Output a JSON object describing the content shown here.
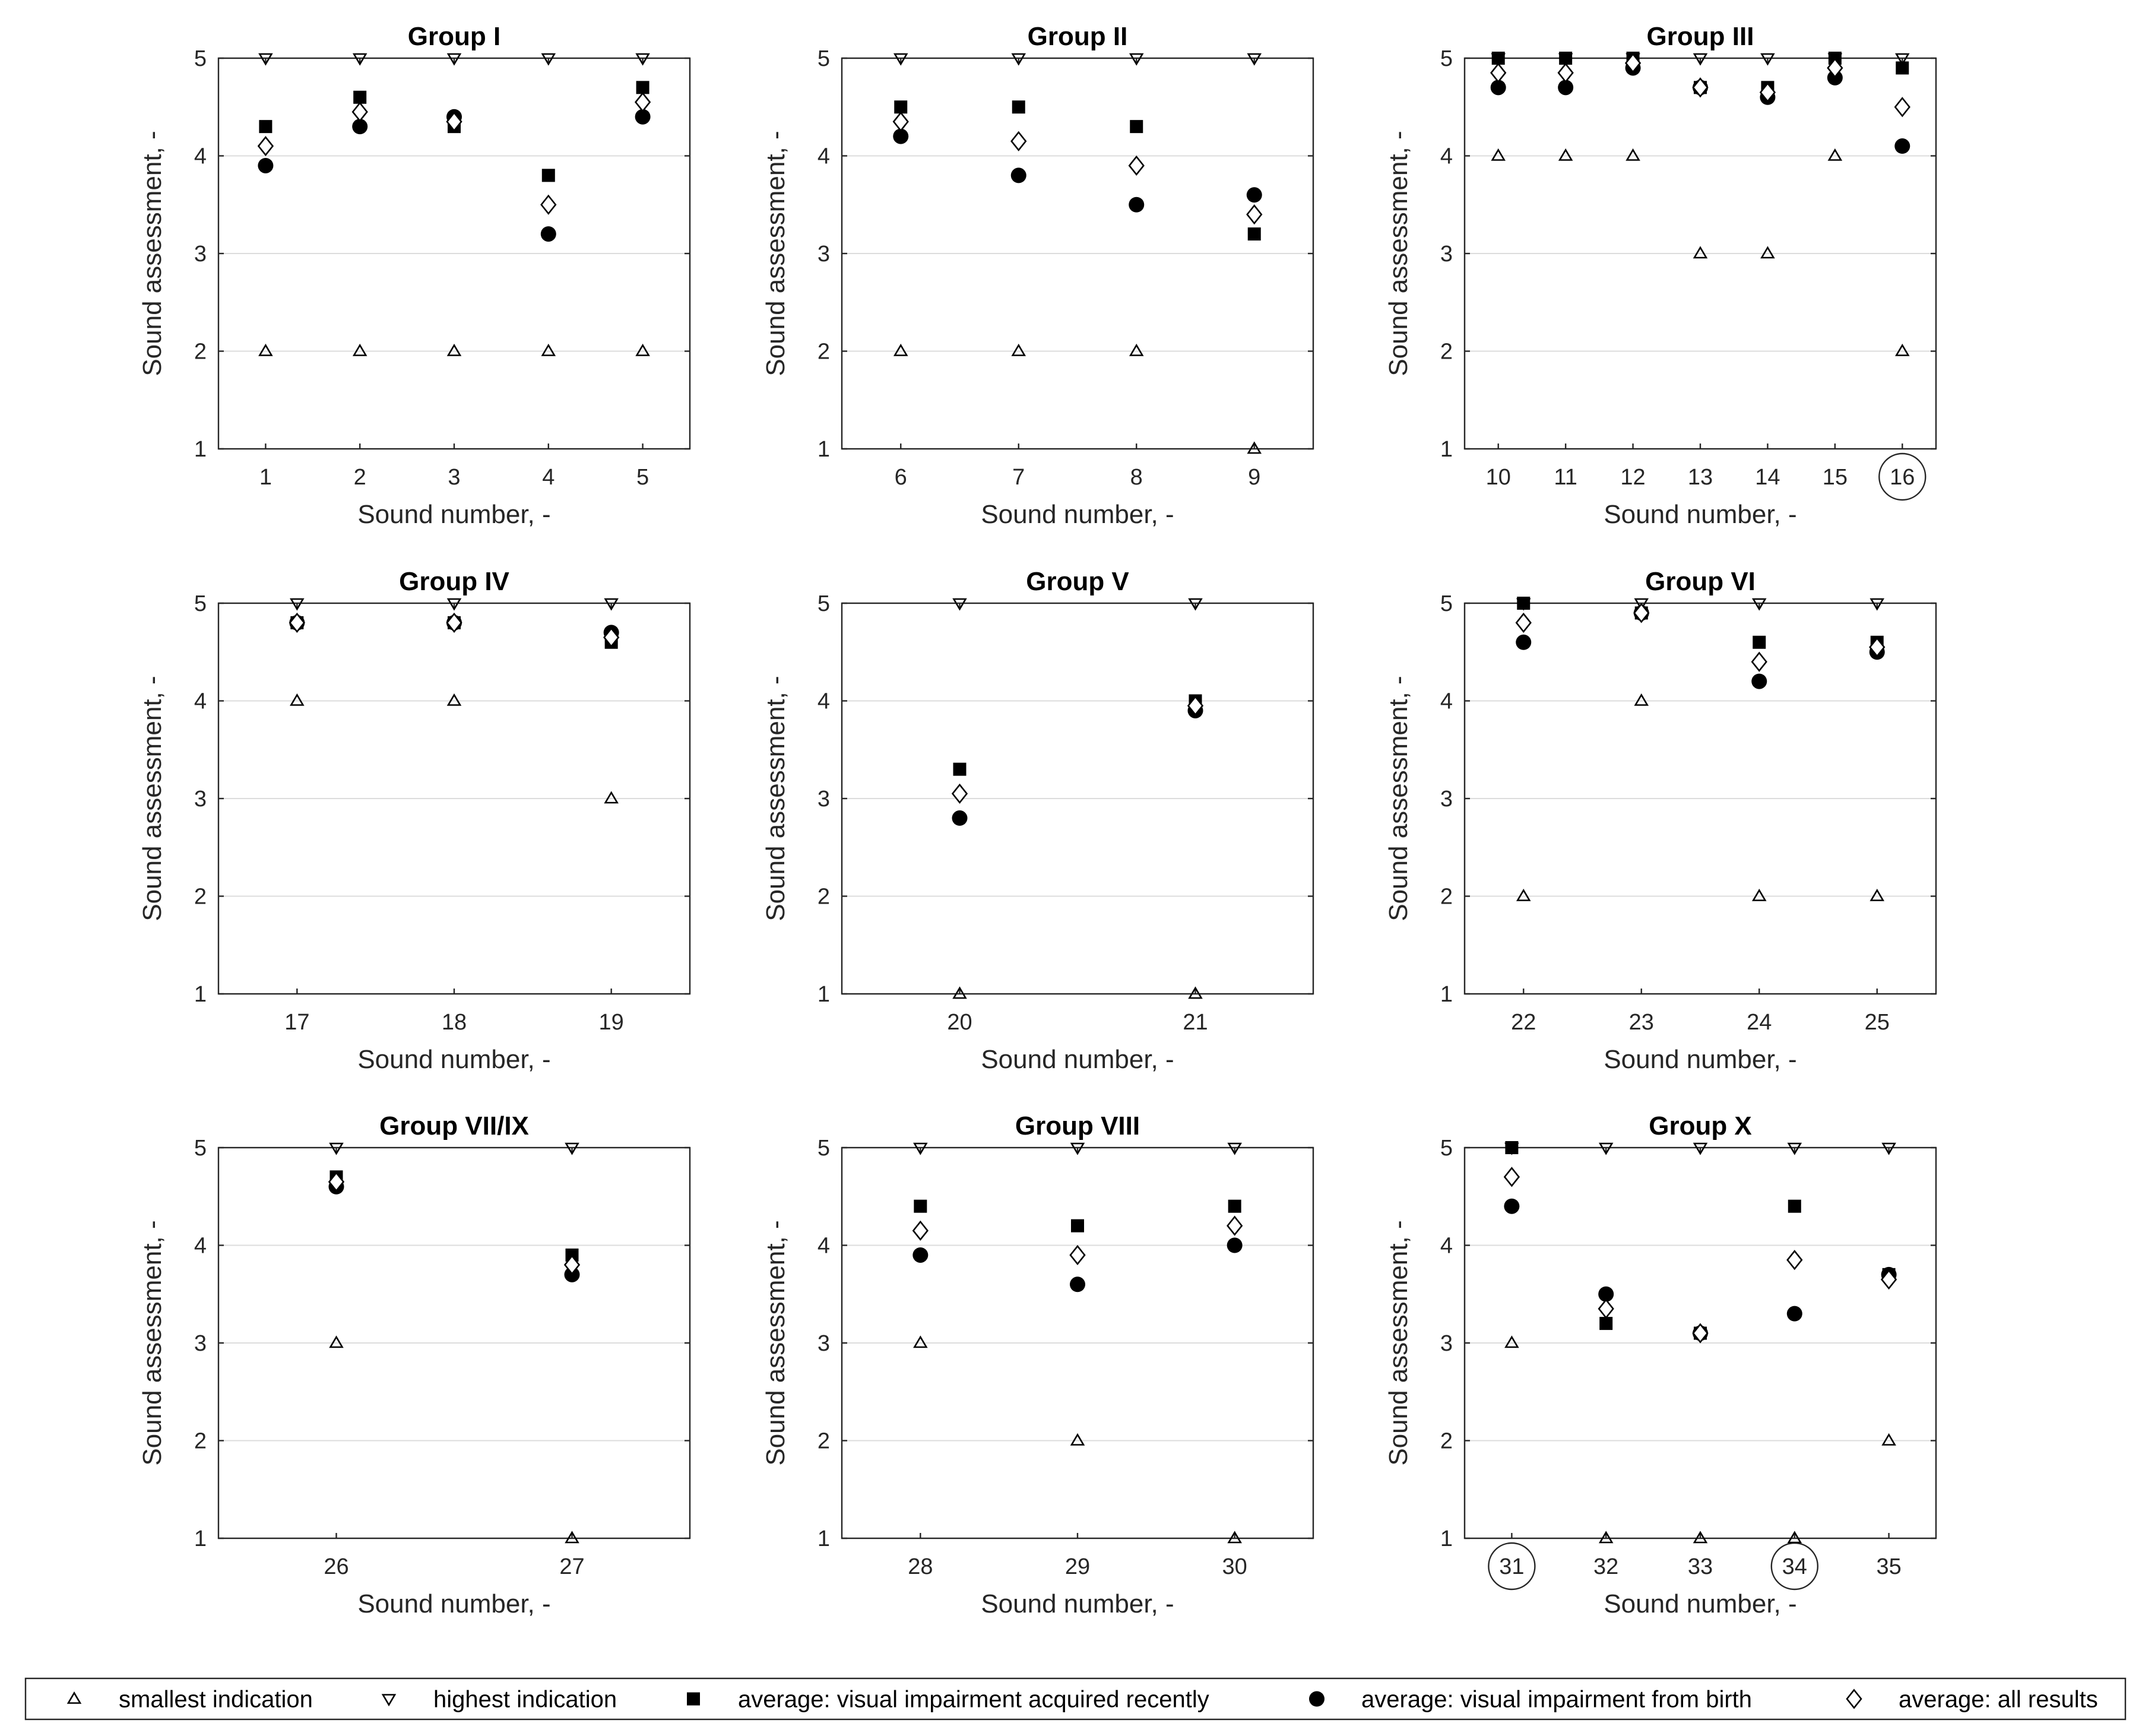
{
  "chart_data": {
    "type": "scatter",
    "panels": [
      {
        "title": "Group I",
        "xlabel": "Sound number, -",
        "ylabel": "Sound assessment, -",
        "ylim": [
          1,
          5
        ],
        "yticks": [
          "1",
          "2",
          "3",
          "4",
          "5"
        ],
        "grid": "horizontal",
        "categories": [
          "1",
          "2",
          "3",
          "4",
          "5"
        ],
        "circled": [],
        "series": {
          "smallest": [
            2,
            2,
            2,
            2,
            2
          ],
          "highest": [
            5,
            5,
            5,
            5,
            5
          ],
          "recent": [
            4.3,
            4.6,
            4.3,
            3.8,
            4.7
          ],
          "birth": [
            3.9,
            4.3,
            4.4,
            3.2,
            4.4
          ],
          "all": [
            4.1,
            4.45,
            4.35,
            3.5,
            4.55
          ]
        }
      },
      {
        "title": "Group II",
        "xlabel": "Sound number, -",
        "ylabel": "Sound assessment, -",
        "ylim": [
          1,
          5
        ],
        "yticks": [
          "1",
          "2",
          "3",
          "4",
          "5"
        ],
        "grid": "horizontal",
        "categories": [
          "6",
          "7",
          "8",
          "9"
        ],
        "circled": [],
        "series": {
          "smallest": [
            2,
            2,
            2,
            1
          ],
          "highest": [
            5,
            5,
            5,
            5
          ],
          "recent": [
            4.5,
            4.5,
            4.3,
            3.2
          ],
          "birth": [
            4.2,
            3.8,
            3.5,
            3.6
          ],
          "all": [
            4.35,
            4.15,
            3.9,
            3.4
          ]
        }
      },
      {
        "title": "Group III",
        "xlabel": "Sound number, -",
        "ylabel": "Sound assessment, -",
        "ylim": [
          1,
          5
        ],
        "yticks": [
          "1",
          "2",
          "3",
          "4",
          "5"
        ],
        "grid": "horizontal",
        "categories": [
          "10",
          "11",
          "12",
          "13",
          "14",
          "15",
          "16"
        ],
        "circled": [
          "16"
        ],
        "series": {
          "smallest": [
            4,
            4,
            4,
            3,
            3,
            4,
            2
          ],
          "highest": [
            5,
            5,
            5,
            5,
            5,
            5,
            5
          ],
          "recent": [
            5,
            5,
            5,
            4.7,
            4.7,
            5,
            4.9
          ],
          "birth": [
            4.7,
            4.7,
            4.9,
            4.7,
            4.6,
            4.8,
            4.1
          ],
          "all": [
            4.85,
            4.85,
            4.95,
            4.7,
            4.65,
            4.9,
            4.5
          ]
        }
      },
      {
        "title": "Group IV",
        "xlabel": "Sound number, -",
        "ylabel": "Sound assessment, -",
        "ylim": [
          1,
          5
        ],
        "yticks": [
          "1",
          "2",
          "3",
          "4",
          "5"
        ],
        "grid": "horizontal",
        "categories": [
          "17",
          "18",
          "19"
        ],
        "circled": [],
        "series": {
          "smallest": [
            4,
            4,
            3
          ],
          "highest": [
            5,
            5,
            5
          ],
          "recent": [
            4.8,
            4.8,
            4.6
          ],
          "birth": [
            4.8,
            4.8,
            4.7
          ],
          "all": [
            4.8,
            4.8,
            4.65
          ]
        }
      },
      {
        "title": "Group V",
        "xlabel": "Sound number, -",
        "ylabel": "Sound assessment, -",
        "ylim": [
          1,
          5
        ],
        "yticks": [
          "1",
          "2",
          "3",
          "4",
          "5"
        ],
        "grid": "horizontal",
        "categories": [
          "20",
          "21"
        ],
        "circled": [],
        "series": {
          "smallest": [
            1,
            1
          ],
          "highest": [
            5,
            5
          ],
          "recent": [
            3.3,
            4.0
          ],
          "birth": [
            2.8,
            3.9
          ],
          "all": [
            3.05,
            3.95
          ]
        }
      },
      {
        "title": "Group VI",
        "xlabel": "Sound number, -",
        "ylabel": "Sound assessment, -",
        "ylim": [
          1,
          5
        ],
        "yticks": [
          "1",
          "2",
          "3",
          "4",
          "5"
        ],
        "grid": "horizontal",
        "categories": [
          "22",
          "23",
          "24",
          "25"
        ],
        "circled": [],
        "series": {
          "smallest": [
            2,
            4,
            2,
            2
          ],
          "highest": [
            5,
            5,
            5,
            5
          ],
          "recent": [
            5,
            4.9,
            4.6,
            4.6
          ],
          "birth": [
            4.6,
            4.9,
            4.2,
            4.5
          ],
          "all": [
            4.8,
            4.9,
            4.4,
            4.55
          ]
        }
      },
      {
        "title": "Group VII/IX",
        "xlabel": "Sound number, -",
        "ylabel": "Sound assessment, -",
        "ylim": [
          1,
          5
        ],
        "yticks": [
          "1",
          "2",
          "3",
          "4",
          "5"
        ],
        "grid": "horizontal",
        "categories": [
          "26",
          "27"
        ],
        "circled": [],
        "series": {
          "smallest": [
            3,
            1
          ],
          "highest": [
            5,
            5
          ],
          "recent": [
            4.7,
            3.9
          ],
          "birth": [
            4.6,
            3.7
          ],
          "all": [
            4.65,
            3.8
          ]
        }
      },
      {
        "title": "Group VIII",
        "xlabel": "Sound number, -",
        "ylabel": "Sound assessment, -",
        "ylim": [
          1,
          5
        ],
        "yticks": [
          "1",
          "2",
          "3",
          "4",
          "5"
        ],
        "grid": "horizontal",
        "categories": [
          "28",
          "29",
          "30"
        ],
        "circled": [],
        "series": {
          "smallest": [
            3,
            2,
            1
          ],
          "highest": [
            5,
            5,
            5
          ],
          "recent": [
            4.4,
            4.2,
            4.4
          ],
          "birth": [
            3.9,
            3.6,
            4.0
          ],
          "all": [
            4.15,
            3.9,
            4.2
          ]
        }
      },
      {
        "title": "Group X",
        "xlabel": "Sound number, -",
        "ylabel": "Sound assessment, -",
        "ylim": [
          1,
          5
        ],
        "yticks": [
          "1",
          "2",
          "3",
          "4",
          "5"
        ],
        "grid": "horizontal",
        "categories": [
          "31",
          "32",
          "33",
          "34",
          "35"
        ],
        "circled": [
          "31",
          "34"
        ],
        "series": {
          "smallest": [
            3,
            1,
            1,
            1,
            2
          ],
          "highest": [
            5,
            5,
            5,
            5,
            5
          ],
          "recent": [
            5,
            3.2,
            3.1,
            4.4,
            3.7
          ],
          "birth": [
            4.4,
            3.5,
            3.1,
            3.3,
            3.7
          ],
          "all": [
            4.7,
            3.35,
            3.1,
            3.85,
            3.65
          ]
        }
      }
    ],
    "legend": {
      "placement": "bottom",
      "entries": [
        {
          "key": "smallest",
          "marker": "triangle-up",
          "label": "smallest indication"
        },
        {
          "key": "highest",
          "marker": "triangle-down",
          "label": "highest indication"
        },
        {
          "key": "recent",
          "marker": "square-filled",
          "label": "average: visual impairment acquired recently"
        },
        {
          "key": "birth",
          "marker": "circle-filled",
          "label": "average: visual impairment from birth"
        },
        {
          "key": "all",
          "marker": "diamond-open",
          "label": "average: all results"
        }
      ]
    },
    "colors": {
      "axis": "#262626",
      "grid": "#dcdcdc",
      "marker": "#000000",
      "background": "#ffffff"
    }
  }
}
